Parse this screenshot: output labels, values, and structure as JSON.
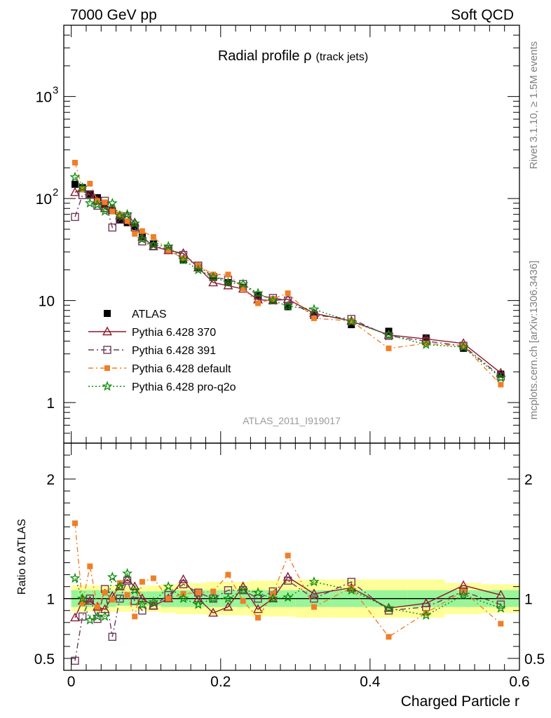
{
  "header": {
    "left_label": "7000 GeV pp",
    "right_label": "Soft QCD"
  },
  "side_labels": {
    "rivet": "Rivet 3.1.10, ≥ 1.5M events",
    "mcplots": "mcplots.cern.ch [arXiv:1306.3436]"
  },
  "chart_data": [
    {
      "type": "scatter",
      "title": "Radial profile ",
      "title_symbol": "ρ",
      "title_suffix": "(track jets)",
      "watermark": "ATLAS_2011_I919017",
      "yscale": "log",
      "xlim": [
        -0.01,
        0.6
      ],
      "ylim": [
        0.4,
        5000
      ],
      "yticks": [
        {
          "value": 1000,
          "base": "10",
          "exp": "3"
        },
        {
          "value": 100,
          "base": "10",
          "exp": "2"
        },
        {
          "value": 10,
          "base": "10",
          "exp": ""
        },
        {
          "value": 1,
          "base": "1",
          "exp": ""
        }
      ],
      "legend_position": "lower-left",
      "x": [
        0.005,
        0.015,
        0.025,
        0.035,
        0.045,
        0.055,
        0.065,
        0.075,
        0.085,
        0.095,
        0.11,
        0.13,
        0.15,
        0.17,
        0.19,
        0.21,
        0.23,
        0.25,
        0.27,
        0.29,
        0.325,
        0.375,
        0.425,
        0.475,
        0.525,
        0.575
      ],
      "series": [
        {
          "name": "ATLAS",
          "marker": "filled-square",
          "color": "#000000",
          "values": [
            138,
            128,
            110,
            102,
            88,
            76,
            62,
            58,
            53,
            42,
            36,
            31,
            25,
            21,
            17,
            15,
            13.5,
            11.2,
            10,
            8.7,
            7.2,
            5.8,
            5.0,
            4.3,
            3.4,
            1.9
          ]
        },
        {
          "name": "Pythia 6.428 370",
          "marker": "open-triangle",
          "color": "#8b1a2e",
          "values": [
            115,
            125,
            108,
            95,
            80,
            78,
            68,
            67,
            58,
            42,
            34,
            31,
            29,
            21,
            15,
            14,
            13,
            10.2,
            10,
            10.3,
            7.5,
            6.3,
            4.6,
            4.2,
            3.8,
            1.95
          ]
        },
        {
          "name": "Pythia 6.428 391",
          "marker": "open-square",
          "color": "#6b3a58",
          "values": [
            66,
            108,
            110,
            85,
            95,
            52,
            62,
            67,
            52,
            38,
            34,
            32,
            28,
            22,
            17,
            16,
            14.5,
            11.2,
            10.6,
            10,
            7.2,
            6.6,
            4.5,
            4.0,
            3.6,
            1.8
          ]
        },
        {
          "name": "Pythia 6.428 default",
          "marker": "filled-square-small",
          "color": "#f07e26",
          "values": [
            225,
            123,
            140,
            95,
            92,
            75,
            70,
            60,
            45,
            48,
            42,
            31,
            26,
            22,
            18,
            18,
            13.2,
            9.4,
            10.4,
            11.8,
            6.7,
            6.3,
            3.4,
            3.8,
            3.6,
            1.5
          ]
        },
        {
          "name": "Pythia 6.428 pro-q2o",
          "marker": "star",
          "color": "#0a8a0a",
          "values": [
            162,
            128,
            90,
            87,
            75,
            90,
            68,
            70,
            57,
            40,
            35,
            34,
            25,
            20,
            17,
            15,
            14.5,
            11.8,
            10,
            8.8,
            8.2,
            6.2,
            4.6,
            3.7,
            3.5,
            1.75
          ]
        }
      ]
    },
    {
      "type": "scatter",
      "xlabel": "Charged Particle r",
      "ylabel": "Ratio to ATLAS",
      "xlim": [
        -0.01,
        0.6
      ],
      "ylim": [
        0.4,
        2.3
      ],
      "xticks": [
        0.0,
        0.2,
        0.4,
        0.6
      ],
      "xtick_labels": [
        "0",
        "0.2",
        "0.4",
        "0.6"
      ],
      "yticks": [
        0.5,
        1,
        2
      ],
      "ytick_labels": [
        "0.5",
        "1",
        "2"
      ],
      "bands": {
        "edges": [
          0.0,
          0.01,
          0.02,
          0.03,
          0.04,
          0.05,
          0.06,
          0.07,
          0.08,
          0.09,
          0.1,
          0.12,
          0.14,
          0.16,
          0.18,
          0.2,
          0.22,
          0.24,
          0.26,
          0.28,
          0.3,
          0.35,
          0.4,
          0.45,
          0.5,
          0.55,
          0.6
        ],
        "stat_half": [
          0.07,
          0.07,
          0.07,
          0.07,
          0.07,
          0.07,
          0.06,
          0.06,
          0.06,
          0.06,
          0.06,
          0.07,
          0.07,
          0.07,
          0.07,
          0.07,
          0.07,
          0.07,
          0.07,
          0.07,
          0.07,
          0.07,
          0.07,
          0.07,
          0.07,
          0.07
        ],
        "total_half": [
          0.11,
          0.11,
          0.11,
          0.11,
          0.11,
          0.11,
          0.11,
          0.11,
          0.1,
          0.1,
          0.11,
          0.12,
          0.13,
          0.13,
          0.14,
          0.14,
          0.14,
          0.15,
          0.15,
          0.15,
          0.16,
          0.16,
          0.16,
          0.16,
          0.13,
          0.12
        ]
      },
      "series": [
        {
          "name": "Pythia 6.428 370",
          "values": [
            0.84,
            0.98,
            0.98,
            0.93,
            0.91,
            1.02,
            1.1,
            1.16,
            1.1,
            1.0,
            0.94,
            1.0,
            1.16,
            1.0,
            0.88,
            0.93,
            1.1,
            0.91,
            1.0,
            1.18,
            1.04,
            1.09,
            0.92,
            0.96,
            1.11,
            1.03
          ]
        },
        {
          "name": "Pythia 6.428 391",
          "values": [
            0.48,
            0.85,
            1.0,
            0.83,
            1.08,
            0.68,
            1.0,
            1.15,
            0.98,
            0.9,
            0.94,
            1.03,
            1.12,
            1.05,
            1.0,
            1.07,
            1.07,
            1.0,
            1.06,
            1.15,
            1.0,
            1.14,
            0.9,
            0.93,
            1.06,
            0.95
          ]
        },
        {
          "name": "Pythia 6.428 default",
          "values": [
            1.63,
            0.96,
            1.27,
            0.93,
            1.05,
            0.99,
            1.13,
            1.03,
            0.85,
            1.14,
            1.17,
            1.0,
            1.04,
            1.05,
            1.06,
            1.2,
            0.98,
            0.84,
            1.04,
            1.36,
            0.93,
            1.09,
            0.68,
            0.88,
            1.06,
            0.79
          ]
        },
        {
          "name": "Pythia 6.428 pro-q2o",
          "values": [
            1.17,
            1.0,
            0.82,
            0.85,
            0.85,
            1.18,
            1.1,
            1.21,
            1.07,
            0.95,
            0.97,
            1.1,
            1.0,
            0.95,
            1.0,
            1.0,
            1.07,
            1.05,
            1.0,
            1.01,
            1.14,
            1.07,
            0.92,
            0.86,
            1.03,
            0.92
          ]
        }
      ]
    }
  ]
}
